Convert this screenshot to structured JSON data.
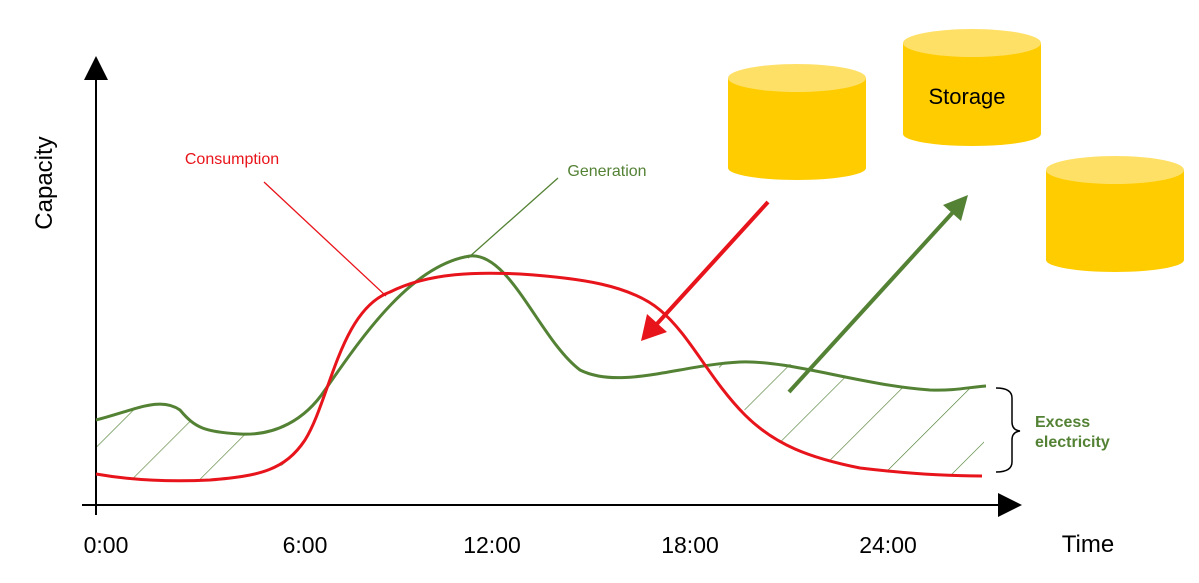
{
  "axes": {
    "y_label": "Capacity",
    "x_label": "Time",
    "x_ticks": [
      "0:00",
      "6:00",
      "12:00",
      "18:00",
      "24:00"
    ]
  },
  "series": {
    "consumption": {
      "label": "Consumption",
      "color": "#e8141b"
    },
    "generation": {
      "label": "Generation",
      "color": "#548235"
    }
  },
  "storage": {
    "label": "Storage",
    "color": "#ffcc00",
    "top_color": "#ffe066"
  },
  "annotation": {
    "line1": "Excess",
    "line2": "electricity",
    "color": "#548235"
  }
}
